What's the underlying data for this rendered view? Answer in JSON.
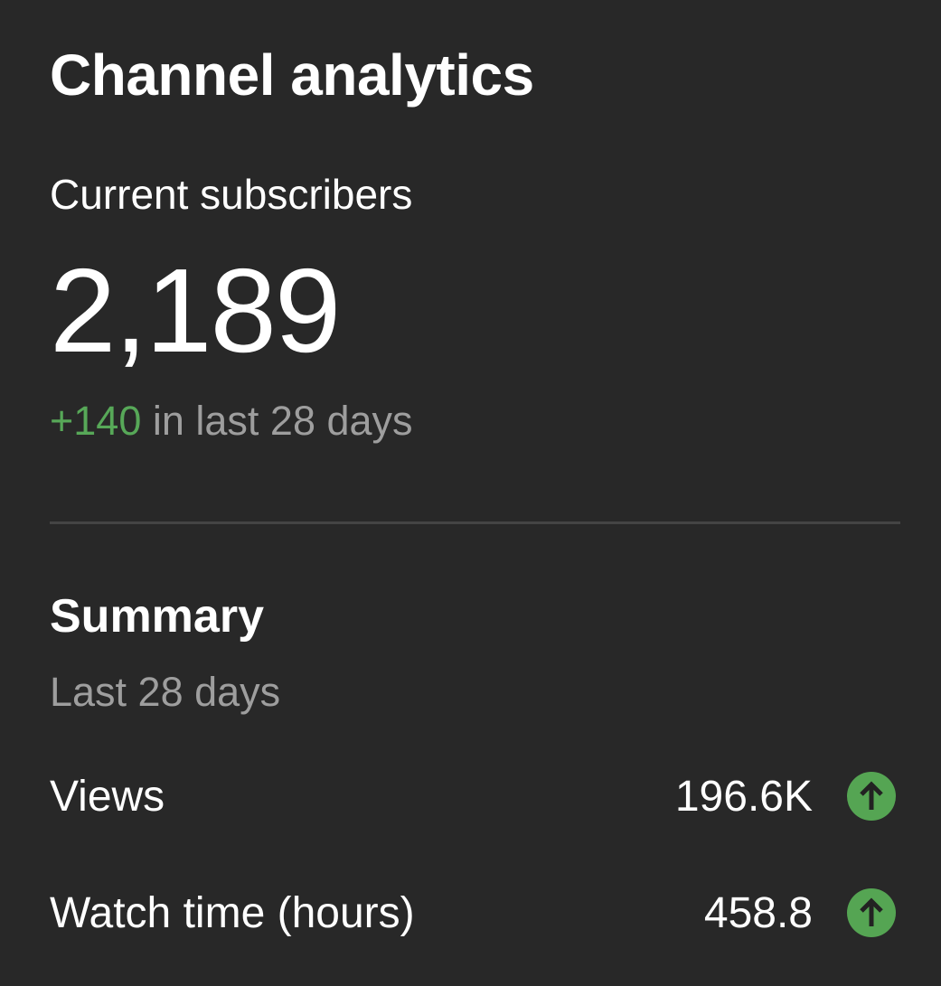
{
  "header": {
    "title": "Channel analytics"
  },
  "subscribers": {
    "label": "Current subscribers",
    "count": "2,189",
    "delta": "+140",
    "delta_suffix": " in last 28 days"
  },
  "summary": {
    "title": "Summary",
    "period": "Last 28 days",
    "metrics": [
      {
        "label": "Views",
        "value": "196.6K",
        "trend_icon": "arrow-up-circle-icon"
      },
      {
        "label": "Watch time (hours)",
        "value": "458.8",
        "trend_icon": "arrow-up-circle-icon"
      }
    ]
  },
  "colors": {
    "background": "#282828",
    "positive": "#55a553",
    "muted": "#9e9e9e"
  }
}
